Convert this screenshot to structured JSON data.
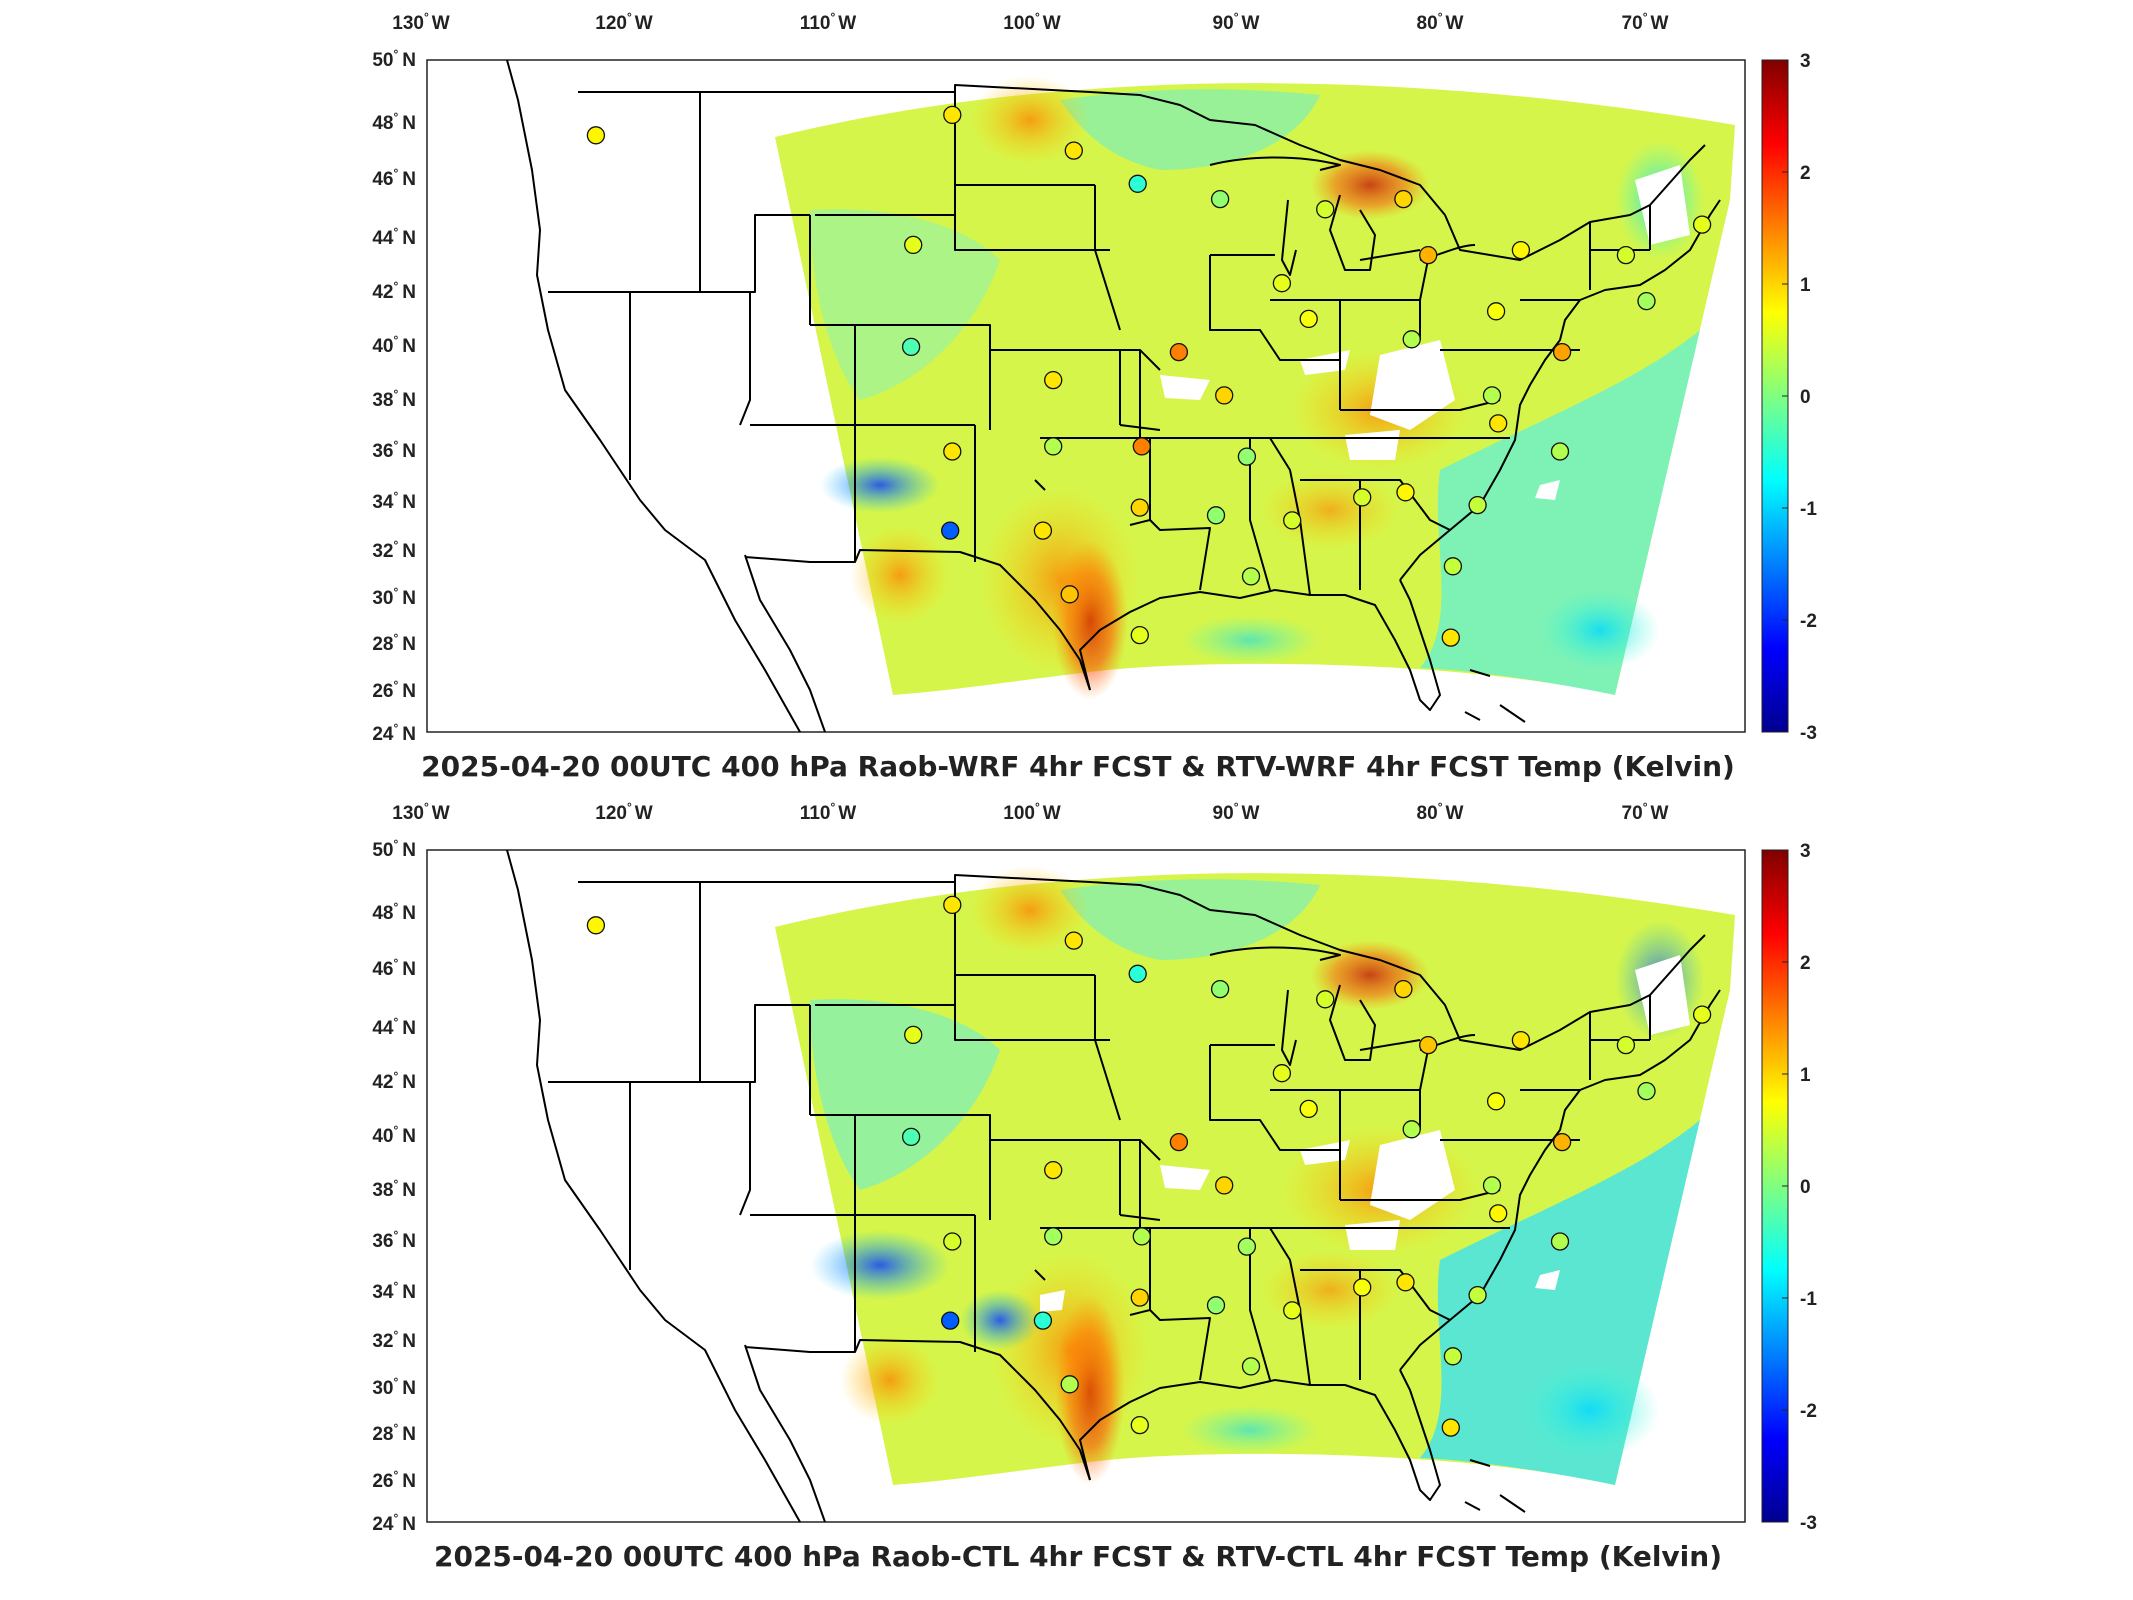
{
  "colorbar": {
    "ticks": [
      "3",
      "2",
      "1",
      "0",
      "-1",
      "-2",
      "-3"
    ],
    "min": -3,
    "max": 3,
    "colormap": "jet",
    "colors": [
      "#00008f",
      "#0000ff",
      "#0080ff",
      "#00ffff",
      "#80ff80",
      "#ffff00",
      "#ff8000",
      "#ff0000",
      "#800000"
    ]
  },
  "lon_labels": [
    {
      "deg": "130",
      "dir": "W"
    },
    {
      "deg": "120",
      "dir": "W"
    },
    {
      "deg": "110",
      "dir": "W"
    },
    {
      "deg": "100",
      "dir": "W"
    },
    {
      "deg": "90",
      "dir": "W"
    },
    {
      "deg": "80",
      "dir": "W"
    },
    {
      "deg": "70",
      "dir": "W"
    }
  ],
  "lat_labels": [
    {
      "deg": "50",
      "dir": "N"
    },
    {
      "deg": "48",
      "dir": "N"
    },
    {
      "deg": "46",
      "dir": "N"
    },
    {
      "deg": "44",
      "dir": "N"
    },
    {
      "deg": "42",
      "dir": "N"
    },
    {
      "deg": "40",
      "dir": "N"
    },
    {
      "deg": "38",
      "dir": "N"
    },
    {
      "deg": "36",
      "dir": "N"
    },
    {
      "deg": "34",
      "dir": "N"
    },
    {
      "deg": "32",
      "dir": "N"
    },
    {
      "deg": "30",
      "dir": "N"
    },
    {
      "deg": "28",
      "dir": "N"
    },
    {
      "deg": "26",
      "dir": "N"
    },
    {
      "deg": "24",
      "dir": "N"
    }
  ],
  "panels": [
    {
      "title": "2025-04-20 00UTC 400 hPa Raob-WRF 4hr FCST & RTV-WRF 4hr FCST Temp (Kelvin)",
      "stations": [
        {
          "lon": -123.9,
          "lat": 47.4,
          "value": 0.8
        },
        {
          "lon": -106.6,
          "lat": 48.2,
          "value": 0.9
        },
        {
          "lon": -100.7,
          "lat": 46.8,
          "value": 0.9
        },
        {
          "lon": -97.6,
          "lat": 45.5,
          "value": -0.5
        },
        {
          "lon": -93.6,
          "lat": 44.9,
          "value": 0.1
        },
        {
          "lon": -108.5,
          "lat": 43.1,
          "value": 0.6
        },
        {
          "lon": -88.5,
          "lat": 44.5,
          "value": 0.5
        },
        {
          "lon": -84.7,
          "lat": 44.9,
          "value": 1.0
        },
        {
          "lon": -83.5,
          "lat": 42.7,
          "value": 1.2
        },
        {
          "lon": -79.0,
          "lat": 42.9,
          "value": 0.8
        },
        {
          "lon": -73.9,
          "lat": 42.7,
          "value": 0.5
        },
        {
          "lon": -70.2,
          "lat": 43.9,
          "value": 0.6
        },
        {
          "lon": -72.9,
          "lat": 40.9,
          "value": 0.2
        },
        {
          "lon": -90.6,
          "lat": 41.6,
          "value": 0.6
        },
        {
          "lon": -89.3,
          "lat": 40.2,
          "value": 0.7
        },
        {
          "lon": -84.3,
          "lat": 39.4,
          "value": 0.3
        },
        {
          "lon": -80.2,
          "lat": 40.5,
          "value": 0.7
        },
        {
          "lon": -108.6,
          "lat": 39.1,
          "value": -0.3
        },
        {
          "lon": -95.6,
          "lat": 38.9,
          "value": 1.5
        },
        {
          "lon": -101.7,
          "lat": 37.8,
          "value": 0.9
        },
        {
          "lon": -93.4,
          "lat": 37.2,
          "value": 1.0
        },
        {
          "lon": -80.4,
          "lat": 37.2,
          "value": 0.3
        },
        {
          "lon": -77.0,
          "lat": 38.9,
          "value": 1.3
        },
        {
          "lon": -80.1,
          "lat": 36.1,
          "value": 0.9
        },
        {
          "lon": -77.1,
          "lat": 35.0,
          "value": 0.3
        },
        {
          "lon": -106.6,
          "lat": 35.0,
          "value": 0.9
        },
        {
          "lon": -101.7,
          "lat": 35.2,
          "value": 0.3
        },
        {
          "lon": -97.4,
          "lat": 35.2,
          "value": 1.5
        },
        {
          "lon": -92.3,
          "lat": 34.8,
          "value": 0.1
        },
        {
          "lon": -106.7,
          "lat": 31.9,
          "value": -1.7
        },
        {
          "lon": -102.2,
          "lat": 31.9,
          "value": 0.9
        },
        {
          "lon": -97.5,
          "lat": 32.8,
          "value": 1.0
        },
        {
          "lon": -93.8,
          "lat": 32.5,
          "value": 0.1
        },
        {
          "lon": -90.1,
          "lat": 32.3,
          "value": 0.5
        },
        {
          "lon": -86.7,
          "lat": 33.2,
          "value": 0.5
        },
        {
          "lon": -84.6,
          "lat": 33.4,
          "value": 0.8
        },
        {
          "lon": -81.1,
          "lat": 32.9,
          "value": 0.4
        },
        {
          "lon": -100.9,
          "lat": 29.4,
          "value": 1.1
        },
        {
          "lon": -97.5,
          "lat": 27.8,
          "value": 0.6
        },
        {
          "lon": -92.1,
          "lat": 30.1,
          "value": 0.3
        },
        {
          "lon": -82.3,
          "lat": 30.5,
          "value": 0.4
        },
        {
          "lon": -82.4,
          "lat": 27.7,
          "value": 0.9
        }
      ]
    },
    {
      "title": "2025-04-20 00UTC 400 hPa Raob-CTL 4hr FCST & RTV-CTL 4hr FCST Temp (Kelvin)",
      "stations": [
        {
          "lon": -123.9,
          "lat": 47.4,
          "value": 0.8
        },
        {
          "lon": -106.6,
          "lat": 48.2,
          "value": 0.9
        },
        {
          "lon": -100.7,
          "lat": 46.8,
          "value": 0.9
        },
        {
          "lon": -97.6,
          "lat": 45.5,
          "value": -0.5
        },
        {
          "lon": -93.6,
          "lat": 44.9,
          "value": 0.1
        },
        {
          "lon": -108.5,
          "lat": 43.1,
          "value": 0.6
        },
        {
          "lon": -88.5,
          "lat": 44.5,
          "value": 0.5
        },
        {
          "lon": -84.7,
          "lat": 44.9,
          "value": 1.0
        },
        {
          "lon": -83.5,
          "lat": 42.7,
          "value": 1.1
        },
        {
          "lon": -79.0,
          "lat": 42.9,
          "value": 0.9
        },
        {
          "lon": -73.9,
          "lat": 42.7,
          "value": 0.5
        },
        {
          "lon": -70.2,
          "lat": 43.9,
          "value": 0.6
        },
        {
          "lon": -72.9,
          "lat": 40.9,
          "value": 0.2
        },
        {
          "lon": -90.6,
          "lat": 41.6,
          "value": 0.6
        },
        {
          "lon": -89.3,
          "lat": 40.2,
          "value": 0.7
        },
        {
          "lon": -84.3,
          "lat": 39.4,
          "value": 0.3
        },
        {
          "lon": -80.2,
          "lat": 40.5,
          "value": 0.7
        },
        {
          "lon": -108.6,
          "lat": 39.1,
          "value": -0.3
        },
        {
          "lon": -95.6,
          "lat": 38.9,
          "value": 1.5
        },
        {
          "lon": -101.7,
          "lat": 37.8,
          "value": 0.9
        },
        {
          "lon": -93.4,
          "lat": 37.2,
          "value": 1.0
        },
        {
          "lon": -80.4,
          "lat": 37.2,
          "value": 0.3
        },
        {
          "lon": -77.0,
          "lat": 38.9,
          "value": 1.2
        },
        {
          "lon": -80.1,
          "lat": 36.1,
          "value": 0.8
        },
        {
          "lon": -77.1,
          "lat": 35.0,
          "value": 0.3
        },
        {
          "lon": -106.6,
          "lat": 35.0,
          "value": 0.5
        },
        {
          "lon": -101.7,
          "lat": 35.2,
          "value": 0.2
        },
        {
          "lon": -97.4,
          "lat": 35.2,
          "value": 0.3
        },
        {
          "lon": -92.3,
          "lat": 34.8,
          "value": 0.2
        },
        {
          "lon": -106.7,
          "lat": 31.9,
          "value": -1.7
        },
        {
          "lon": -102.2,
          "lat": 31.9,
          "value": -0.5
        },
        {
          "lon": -97.5,
          "lat": 32.8,
          "value": 1.0
        },
        {
          "lon": -93.8,
          "lat": 32.5,
          "value": 0.1
        },
        {
          "lon": -90.1,
          "lat": 32.3,
          "value": 0.6
        },
        {
          "lon": -86.7,
          "lat": 33.2,
          "value": 0.7
        },
        {
          "lon": -84.6,
          "lat": 33.4,
          "value": 0.9
        },
        {
          "lon": -81.1,
          "lat": 32.9,
          "value": 0.4
        },
        {
          "lon": -100.9,
          "lat": 29.4,
          "value": 0.3
        },
        {
          "lon": -97.5,
          "lat": 27.8,
          "value": 0.6
        },
        {
          "lon": -92.1,
          "lat": 30.1,
          "value": 0.3
        },
        {
          "lon": -82.3,
          "lat": 30.5,
          "value": 0.4
        },
        {
          "lon": -82.4,
          "lat": 27.7,
          "value": 0.9
        }
      ]
    }
  ]
}
